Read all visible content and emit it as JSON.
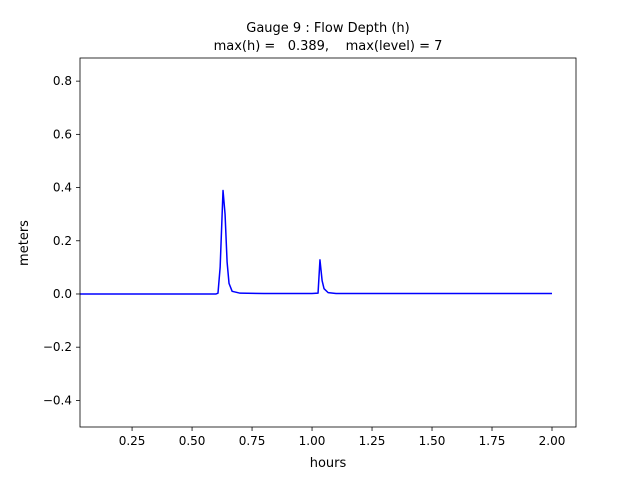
{
  "chart_data": {
    "type": "line",
    "title": "Gauge 9 : Flow Depth (h)",
    "subtitle": "max(h) =   0.389,    max(level) = 7",
    "x_label": "hours",
    "y_label": "meters",
    "x": [
      0.033,
      0.3,
      0.5,
      0.6,
      0.608,
      0.617,
      0.629,
      0.6375,
      0.646,
      0.654,
      0.667,
      0.7,
      0.8,
      1.0,
      1.025,
      1.033,
      1.042,
      1.05,
      1.067,
      1.1,
      1.5,
      2.0
    ],
    "series": [
      {
        "name": "h",
        "color": "#0000ff",
        "values": [
          0,
          0,
          0,
          0,
          0.003,
          0.1,
          0.389,
          0.3,
          0.12,
          0.04,
          0.01,
          0.003,
          0.002,
          0.002,
          0.003,
          0.128,
          0.05,
          0.02,
          0.005,
          0.002,
          0.002,
          0.002
        ]
      }
    ],
    "xlim": [
      0.033,
      2.1
    ],
    "ylim": [
      -0.5,
      0.887
    ],
    "xticks": [
      0.25,
      {
        "value": 0.5,
        "label": "0.50"
      },
      {
        "value": 0.75,
        "label": "0.75"
      },
      {
        "value": 1,
        "label": "1.00"
      },
      {
        "value": 1.25,
        "label": "1.25"
      },
      {
        "value": 1.5,
        "label": "1.50"
      },
      {
        "value": 1.75,
        "label": "1.75"
      },
      {
        "value": 2,
        "label": "2.00"
      }
    ],
    "yticks": [
      {
        "value": -0.4,
        "label": "−0.4"
      },
      {
        "value": -0.2,
        "label": "−0.2"
      },
      {
        "value": 0,
        "label": "0.0"
      },
      0.2,
      0.4,
      0.6,
      0.8
    ]
  }
}
